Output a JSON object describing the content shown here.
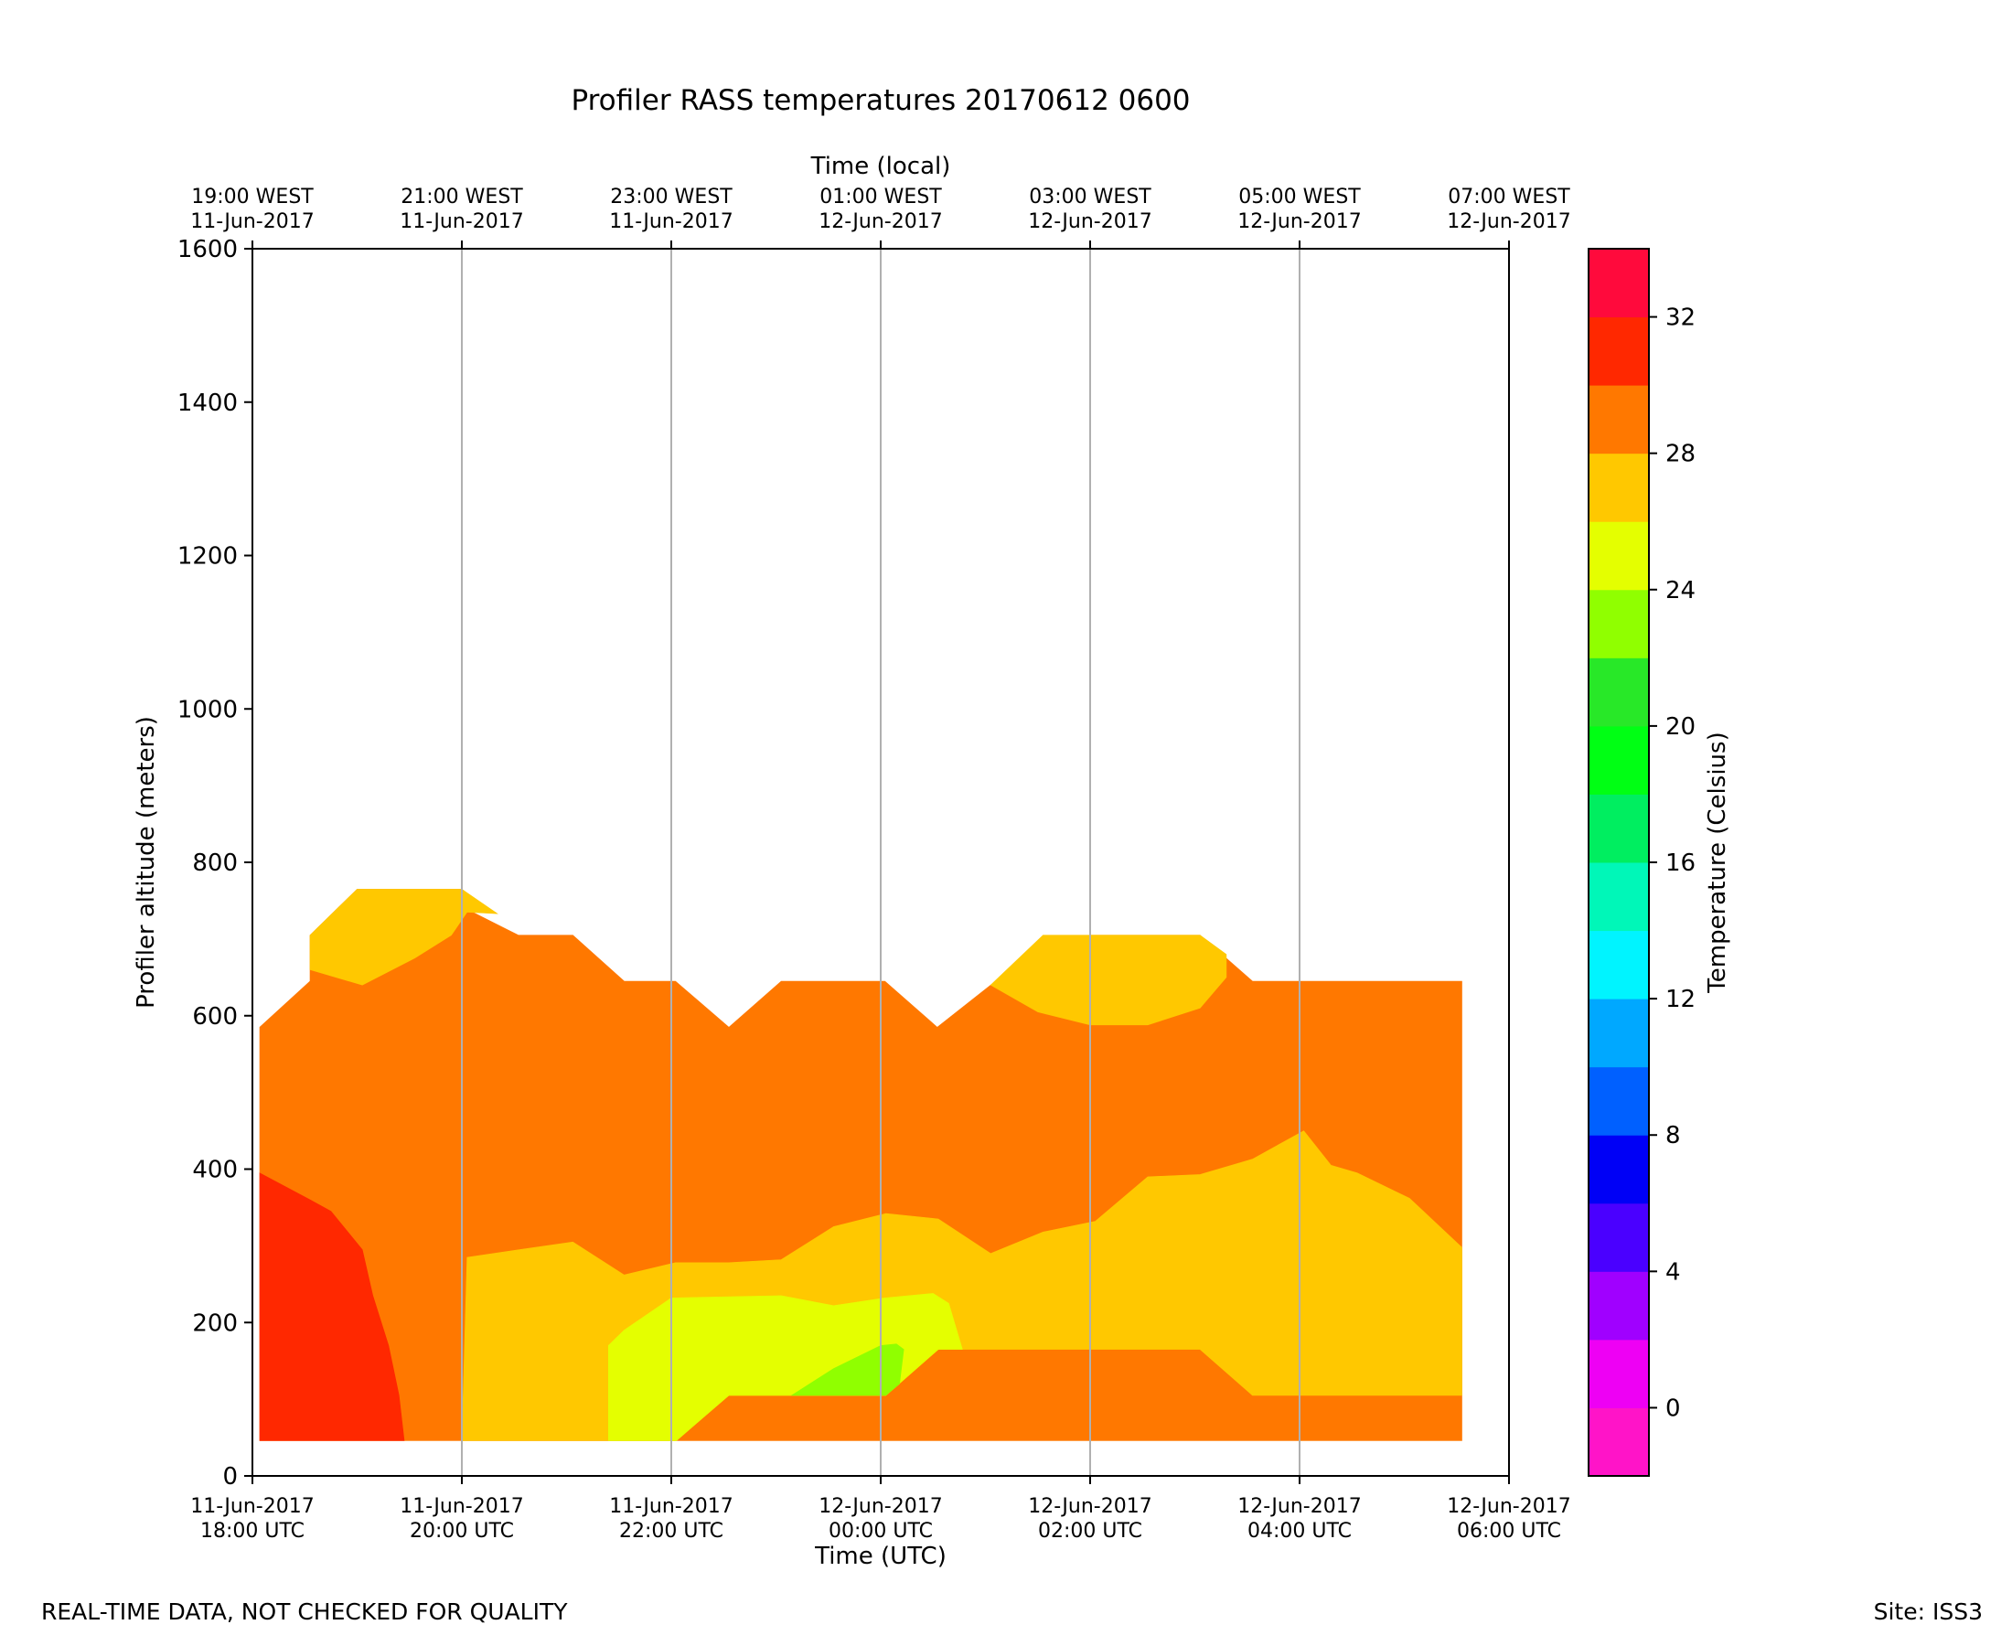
{
  "chart_data": {
    "type": "filled-contour",
    "title": "Profiler RASS temperatures 20170612 0600",
    "xlabel": "Time (UTC)",
    "xlabel_top": "Time (local)",
    "ylabel": "Profiler altitude (meters)",
    "colorbar_label": "Temperature (Celsius)",
    "ylim": [
      0,
      1600
    ],
    "y_ticks": [
      0,
      200,
      400,
      600,
      800,
      1000,
      1200,
      1400,
      1600
    ],
    "x_range_hours": [
      0,
      12
    ],
    "x_ticks": [
      {
        "h": 0,
        "line1": "11-Jun-2017",
        "line2": "18:00 UTC"
      },
      {
        "h": 2,
        "line1": "11-Jun-2017",
        "line2": "20:00 UTC"
      },
      {
        "h": 4,
        "line1": "11-Jun-2017",
        "line2": "22:00 UTC"
      },
      {
        "h": 6,
        "line1": "12-Jun-2017",
        "line2": "00:00 UTC"
      },
      {
        "h": 8,
        "line1": "12-Jun-2017",
        "line2": "02:00 UTC"
      },
      {
        "h": 10,
        "line1": "12-Jun-2017",
        "line2": "04:00 UTC"
      },
      {
        "h": 12,
        "line1": "12-Jun-2017",
        "line2": "06:00 UTC"
      }
    ],
    "x_ticks_top": [
      {
        "h": 0,
        "line1": "19:00 WEST",
        "line2": "11-Jun-2017"
      },
      {
        "h": 2,
        "line1": "21:00 WEST",
        "line2": "11-Jun-2017"
      },
      {
        "h": 4,
        "line1": "23:00 WEST",
        "line2": "11-Jun-2017"
      },
      {
        "h": 6,
        "line1": "01:00 WEST",
        "line2": "12-Jun-2017"
      },
      {
        "h": 8,
        "line1": "03:00 WEST",
        "line2": "12-Jun-2017"
      },
      {
        "h": 10,
        "line1": "05:00 WEST",
        "line2": "12-Jun-2017"
      },
      {
        "h": 12,
        "line1": "07:00 WEST",
        "line2": "12-Jun-2017"
      }
    ],
    "gridlines_hours": [
      2,
      4,
      6,
      8,
      10
    ],
    "colorbar": {
      "range": [
        -2,
        34
      ],
      "levels": [
        {
          "from": -2,
          "to": 0,
          "color": "#ff14c8"
        },
        {
          "from": 0,
          "to": 2,
          "color": "#ee00f4"
        },
        {
          "from": 2,
          "to": 4,
          "color": "#a000ff"
        },
        {
          "from": 4,
          "to": 6,
          "color": "#4a00ff"
        },
        {
          "from": 6,
          "to": 8,
          "color": "#0000f6"
        },
        {
          "from": 8,
          "to": 10,
          "color": "#0060ff"
        },
        {
          "from": 10,
          "to": 12,
          "color": "#00a8ff"
        },
        {
          "from": 12,
          "to": 14,
          "color": "#00f4ff"
        },
        {
          "from": 14,
          "to": 16,
          "color": "#00f7b8"
        },
        {
          "from": 16,
          "to": 18,
          "color": "#00ee60"
        },
        {
          "from": 18,
          "to": 20,
          "color": "#00ff14"
        },
        {
          "from": 20,
          "to": 22,
          "color": "#28e828"
        },
        {
          "from": 22,
          "to": 24,
          "color": "#90ff00"
        },
        {
          "from": 24,
          "to": 26,
          "color": "#e4ff00"
        },
        {
          "from": 26,
          "to": 28,
          "color": "#ffc800"
        },
        {
          "from": 28,
          "to": 30,
          "color": "#ff7800"
        },
        {
          "from": 30,
          "to": 32,
          "color": "#ff2800"
        },
        {
          "from": 32,
          "to": 34,
          "color": "#ff0a3c"
        }
      ],
      "ticks": [
        0,
        4,
        8,
        12,
        16,
        20,
        24,
        28,
        32
      ]
    },
    "regions": [
      {
        "name": "band-28-30",
        "temp_range": [
          28,
          30
        ],
        "color": "#ff7800",
        "points": [
          [
            0.07,
            46
          ],
          [
            0.07,
            585
          ],
          [
            0.55,
            645
          ],
          [
            0.55,
            705
          ],
          [
            1.0,
            765
          ],
          [
            2.0,
            765
          ],
          [
            2.03,
            740
          ],
          [
            2.54,
            705
          ],
          [
            3.06,
            705
          ],
          [
            3.55,
            645
          ],
          [
            4.04,
            645
          ],
          [
            4.55,
            585
          ],
          [
            5.05,
            645
          ],
          [
            6.04,
            645
          ],
          [
            6.54,
            585
          ],
          [
            7.05,
            640
          ],
          [
            8.0,
            705
          ],
          [
            9.05,
            705
          ],
          [
            9.55,
            645
          ],
          [
            10.04,
            645
          ],
          [
            11.55,
            645
          ],
          [
            11.55,
            46
          ]
        ]
      },
      {
        "name": "band-26-28-upper-left",
        "temp_range": [
          26,
          28
        ],
        "color": "#ffc800",
        "points": [
          [
            0.55,
            705
          ],
          [
            1.0,
            765
          ],
          [
            2.0,
            765
          ],
          [
            2.34,
            733
          ],
          [
            2.05,
            735
          ],
          [
            1.9,
            705
          ],
          [
            1.55,
            675
          ],
          [
            1.05,
            640
          ],
          [
            0.8,
            650
          ],
          [
            0.55,
            660
          ]
        ]
      },
      {
        "name": "band-26-28-upper-right",
        "temp_range": [
          26,
          28
        ],
        "color": "#ffc800",
        "points": [
          [
            7.05,
            640
          ],
          [
            7.55,
            705
          ],
          [
            9.05,
            705
          ],
          [
            9.3,
            680
          ],
          [
            9.3,
            650
          ],
          [
            9.05,
            610
          ],
          [
            8.55,
            588
          ],
          [
            8.0,
            588
          ],
          [
            7.5,
            605
          ]
        ]
      },
      {
        "name": "band-26-28-lower",
        "temp_range": [
          26,
          28
        ],
        "color": "#ffc800",
        "points": [
          [
            2.0,
            46
          ],
          [
            2.05,
            285
          ],
          [
            2.55,
            295
          ],
          [
            3.06,
            305
          ],
          [
            3.55,
            262
          ],
          [
            4.04,
            278
          ],
          [
            4.55,
            278
          ],
          [
            5.05,
            282
          ],
          [
            5.55,
            325
          ],
          [
            6.05,
            342
          ],
          [
            6.55,
            335
          ],
          [
            7.05,
            290
          ],
          [
            7.55,
            318
          ],
          [
            8.05,
            332
          ],
          [
            8.55,
            390
          ],
          [
            9.05,
            393
          ],
          [
            9.55,
            413
          ],
          [
            10.04,
            450
          ],
          [
            10.3,
            405
          ],
          [
            10.55,
            395
          ],
          [
            11.05,
            362
          ],
          [
            11.55,
            298
          ],
          [
            11.55,
            105
          ],
          [
            9.55,
            105
          ],
          [
            9.05,
            165
          ],
          [
            6.55,
            165
          ],
          [
            6.05,
            105
          ],
          [
            4.55,
            105
          ],
          [
            4.04,
            46
          ]
        ]
      },
      {
        "name": "band-24-26",
        "temp_range": [
          24,
          26
        ],
        "color": "#e4ff00",
        "points": [
          [
            3.4,
            46
          ],
          [
            3.4,
            170
          ],
          [
            3.55,
            190
          ],
          [
            4.0,
            232
          ],
          [
            5.05,
            235
          ],
          [
            5.55,
            222
          ],
          [
            6.04,
            232
          ],
          [
            6.5,
            238
          ],
          [
            6.65,
            225
          ],
          [
            6.78,
            165
          ],
          [
            6.55,
            165
          ],
          [
            6.05,
            105
          ],
          [
            4.55,
            105
          ],
          [
            4.05,
            46
          ]
        ]
      },
      {
        "name": "band-22-24",
        "temp_range": [
          22,
          24
        ],
        "color": "#90ff00",
        "points": [
          [
            5.15,
            105
          ],
          [
            5.55,
            140
          ],
          [
            6.0,
            170
          ],
          [
            6.15,
            172
          ],
          [
            6.22,
            165
          ],
          [
            6.18,
            120
          ],
          [
            6.05,
            105
          ]
        ]
      },
      {
        "name": "band-30-32",
        "temp_range": [
          30,
          32
        ],
        "color": "#ff2800",
        "points": [
          [
            0.07,
            46
          ],
          [
            0.07,
            395
          ],
          [
            0.55,
            360
          ],
          [
            0.75,
            345
          ],
          [
            1.05,
            295
          ],
          [
            1.15,
            235
          ],
          [
            1.3,
            170
          ],
          [
            1.4,
            105
          ],
          [
            1.45,
            46
          ]
        ]
      }
    ]
  },
  "footer": {
    "left": "REAL-TIME DATA, NOT CHECKED FOR QUALITY",
    "right": "Site: ISS3"
  }
}
